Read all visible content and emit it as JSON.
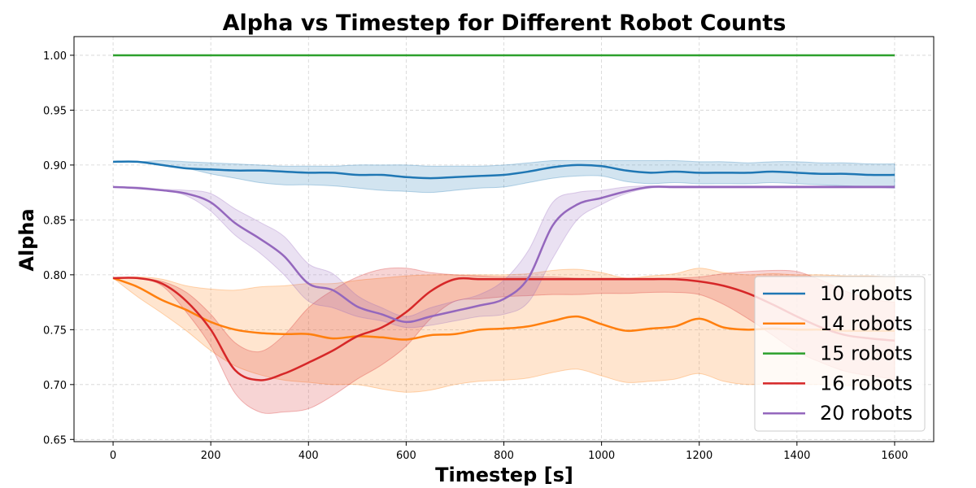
{
  "chart_data": {
    "type": "line",
    "title": "Alpha vs Timestep for Different Robot Counts",
    "xlabel": "Timestep [s]",
    "ylabel": "Alpha",
    "xlim": [
      -80,
      1680
    ],
    "ylim": [
      0.648,
      1.017
    ],
    "xticks": [
      0,
      200,
      400,
      600,
      800,
      1000,
      1200,
      1400,
      1600
    ],
    "yticks": [
      0.65,
      0.7,
      0.75,
      0.8,
      0.85,
      0.9,
      0.95,
      1.0
    ],
    "ytick_labels": [
      "0.65",
      "0.70",
      "0.75",
      "0.80",
      "0.85",
      "0.90",
      "0.95",
      "1.00"
    ],
    "grid": true,
    "legend_position": "lower-right",
    "series": [
      {
        "name": "10 robots",
        "color": "#1f77b4",
        "x": [
          0,
          50,
          100,
          150,
          200,
          250,
          300,
          350,
          400,
          450,
          500,
          550,
          600,
          650,
          700,
          750,
          800,
          850,
          900,
          950,
          1000,
          1050,
          1100,
          1150,
          1200,
          1250,
          1300,
          1350,
          1400,
          1450,
          1500,
          1550,
          1600
        ],
        "y": [
          0.903,
          0.903,
          0.9,
          0.897,
          0.896,
          0.895,
          0.895,
          0.894,
          0.893,
          0.893,
          0.891,
          0.891,
          0.889,
          0.888,
          0.889,
          0.89,
          0.891,
          0.894,
          0.898,
          0.9,
          0.899,
          0.895,
          0.893,
          0.894,
          0.893,
          0.893,
          0.893,
          0.894,
          0.893,
          0.892,
          0.892,
          0.891,
          0.891
        ],
        "lower": [
          0.903,
          0.903,
          0.9,
          0.897,
          0.892,
          0.888,
          0.884,
          0.882,
          0.882,
          0.881,
          0.879,
          0.877,
          0.876,
          0.875,
          0.877,
          0.879,
          0.88,
          0.884,
          0.888,
          0.89,
          0.89,
          0.885,
          0.883,
          0.884,
          0.883,
          0.883,
          0.883,
          0.884,
          0.883,
          0.882,
          0.881,
          0.88,
          0.879
        ],
        "upper": [
          0.903,
          0.903,
          0.904,
          0.903,
          0.902,
          0.901,
          0.9,
          0.899,
          0.899,
          0.899,
          0.9,
          0.9,
          0.9,
          0.899,
          0.899,
          0.899,
          0.9,
          0.902,
          0.904,
          0.904,
          0.904,
          0.904,
          0.904,
          0.904,
          0.903,
          0.903,
          0.902,
          0.903,
          0.903,
          0.902,
          0.902,
          0.901,
          0.901
        ]
      },
      {
        "name": "14 robots",
        "color": "#ff7f0e",
        "x": [
          0,
          50,
          100,
          150,
          200,
          250,
          300,
          350,
          400,
          450,
          500,
          550,
          600,
          650,
          700,
          750,
          800,
          850,
          900,
          950,
          1000,
          1050,
          1100,
          1150,
          1200,
          1250,
          1300,
          1350,
          1400,
          1450,
          1500,
          1550,
          1600
        ],
        "y": [
          0.797,
          0.789,
          0.777,
          0.768,
          0.757,
          0.75,
          0.747,
          0.746,
          0.746,
          0.742,
          0.744,
          0.743,
          0.741,
          0.745,
          0.746,
          0.75,
          0.751,
          0.753,
          0.758,
          0.762,
          0.755,
          0.749,
          0.751,
          0.753,
          0.76,
          0.752,
          0.75,
          0.751,
          0.75,
          0.75,
          0.749,
          0.749,
          0.749
        ],
        "lower": [
          0.797,
          0.78,
          0.765,
          0.749,
          0.731,
          0.717,
          0.709,
          0.704,
          0.702,
          0.7,
          0.7,
          0.696,
          0.693,
          0.695,
          0.7,
          0.703,
          0.704,
          0.706,
          0.711,
          0.714,
          0.708,
          0.702,
          0.703,
          0.705,
          0.71,
          0.703,
          0.7,
          0.701,
          0.7,
          0.7,
          0.699,
          0.699,
          0.699
        ],
        "upper": [
          0.797,
          0.798,
          0.796,
          0.79,
          0.787,
          0.786,
          0.789,
          0.79,
          0.792,
          0.792,
          0.795,
          0.797,
          0.799,
          0.8,
          0.8,
          0.8,
          0.8,
          0.801,
          0.804,
          0.805,
          0.802,
          0.797,
          0.799,
          0.801,
          0.806,
          0.802,
          0.8,
          0.801,
          0.8,
          0.8,
          0.799,
          0.799,
          0.798
        ]
      },
      {
        "name": "15 robots",
        "color": "#2ca02c",
        "x": [
          0,
          1600
        ],
        "y": [
          1.0,
          1.0
        ],
        "lower": [
          1.0,
          1.0
        ],
        "upper": [
          1.0,
          1.0
        ]
      },
      {
        "name": "16 robots",
        "color": "#d62728",
        "x": [
          0,
          50,
          100,
          150,
          200,
          250,
          300,
          350,
          400,
          450,
          500,
          550,
          600,
          650,
          700,
          750,
          800,
          850,
          900,
          950,
          1000,
          1050,
          1100,
          1150,
          1200,
          1250,
          1300,
          1350,
          1400,
          1450,
          1500,
          1550,
          1600
        ],
        "y": [
          0.797,
          0.797,
          0.792,
          0.776,
          0.75,
          0.713,
          0.704,
          0.71,
          0.72,
          0.731,
          0.744,
          0.752,
          0.766,
          0.785,
          0.796,
          0.796,
          0.796,
          0.796,
          0.796,
          0.796,
          0.796,
          0.796,
          0.796,
          0.796,
          0.794,
          0.79,
          0.783,
          0.773,
          0.762,
          0.752,
          0.745,
          0.742,
          0.74
        ],
        "lower": [
          0.797,
          0.797,
          0.79,
          0.766,
          0.735,
          0.692,
          0.675,
          0.675,
          0.678,
          0.69,
          0.705,
          0.718,
          0.735,
          0.76,
          0.776,
          0.778,
          0.78,
          0.781,
          0.782,
          0.782,
          0.783,
          0.783,
          0.784,
          0.784,
          0.782,
          0.773,
          0.76,
          0.745,
          0.73,
          0.72,
          0.712,
          0.708,
          0.705
        ],
        "upper": [
          0.797,
          0.797,
          0.794,
          0.784,
          0.764,
          0.738,
          0.73,
          0.745,
          0.77,
          0.786,
          0.798,
          0.805,
          0.806,
          0.802,
          0.8,
          0.799,
          0.798,
          0.798,
          0.798,
          0.797,
          0.797,
          0.797,
          0.797,
          0.797,
          0.798,
          0.801,
          0.803,
          0.804,
          0.803,
          0.795,
          0.785,
          0.778,
          0.775
        ]
      },
      {
        "name": "20 robots",
        "color": "#9467bd",
        "x": [
          0,
          50,
          100,
          150,
          200,
          250,
          300,
          350,
          400,
          450,
          500,
          550,
          600,
          650,
          700,
          750,
          800,
          850,
          900,
          950,
          1000,
          1050,
          1100,
          1150,
          1200,
          1250,
          1300,
          1350,
          1400,
          1450,
          1500,
          1550,
          1600
        ],
        "y": [
          0.88,
          0.879,
          0.877,
          0.874,
          0.866,
          0.847,
          0.833,
          0.817,
          0.792,
          0.786,
          0.771,
          0.764,
          0.757,
          0.762,
          0.767,
          0.772,
          0.778,
          0.797,
          0.845,
          0.864,
          0.87,
          0.876,
          0.88,
          0.88,
          0.88,
          0.88,
          0.88,
          0.88,
          0.88,
          0.88,
          0.88,
          0.88,
          0.88
        ],
        "lower": [
          0.88,
          0.879,
          0.877,
          0.872,
          0.858,
          0.836,
          0.82,
          0.8,
          0.776,
          0.77,
          0.762,
          0.758,
          0.752,
          0.754,
          0.758,
          0.762,
          0.764,
          0.775,
          0.815,
          0.85,
          0.864,
          0.874,
          0.879,
          0.879,
          0.879,
          0.879,
          0.879,
          0.879,
          0.879,
          0.879,
          0.879,
          0.879,
          0.879
        ],
        "upper": [
          0.88,
          0.88,
          0.878,
          0.877,
          0.874,
          0.86,
          0.848,
          0.835,
          0.81,
          0.801,
          0.781,
          0.77,
          0.762,
          0.77,
          0.776,
          0.782,
          0.795,
          0.822,
          0.866,
          0.875,
          0.877,
          0.88,
          0.881,
          0.881,
          0.881,
          0.881,
          0.881,
          0.881,
          0.881,
          0.881,
          0.881,
          0.881,
          0.881
        ]
      }
    ]
  }
}
